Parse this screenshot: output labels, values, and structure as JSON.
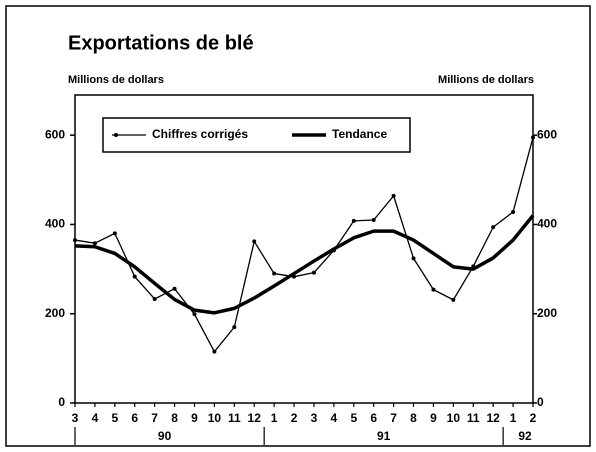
{
  "chart_data": {
    "type": "line",
    "title": "Exportations de blé",
    "y_axis_label": "Millions de dollars",
    "y2_axis_label": "Millions de dollars",
    "categories": [
      "3",
      "4",
      "5",
      "6",
      "7",
      "8",
      "9",
      "10",
      "11",
      "12",
      "1",
      "2",
      "3",
      "4",
      "5",
      "6",
      "7",
      "8",
      "9",
      "10",
      "11",
      "12",
      "1",
      "2"
    ],
    "year_labels": [
      "90",
      "91",
      "92"
    ],
    "series": [
      {
        "name": "Chiffres corrigés",
        "color": "#000000",
        "values": [
          365,
          358,
          380,
          283,
          233,
          256,
          199,
          115,
          170,
          362,
          290,
          283,
          292,
          342,
          408,
          410,
          464,
          324,
          254,
          231,
          306,
          394,
          428,
          595
        ]
      },
      {
        "name": "Tendance",
        "color": "#000000",
        "values": [
          352,
          350,
          335,
          305,
          268,
          232,
          208,
          202,
          212,
          235,
          262,
          290,
          318,
          345,
          370,
          385,
          385,
          365,
          335,
          305,
          300,
          325,
          365,
          420
        ]
      }
    ],
    "ylim": [
      0,
      690
    ],
    "yticks": [
      0,
      200,
      400,
      600
    ],
    "y2lim": [
      0,
      690
    ],
    "y2ticks": [
      0,
      200,
      400,
      600
    ],
    "legend": "top-left",
    "grid": false
  }
}
